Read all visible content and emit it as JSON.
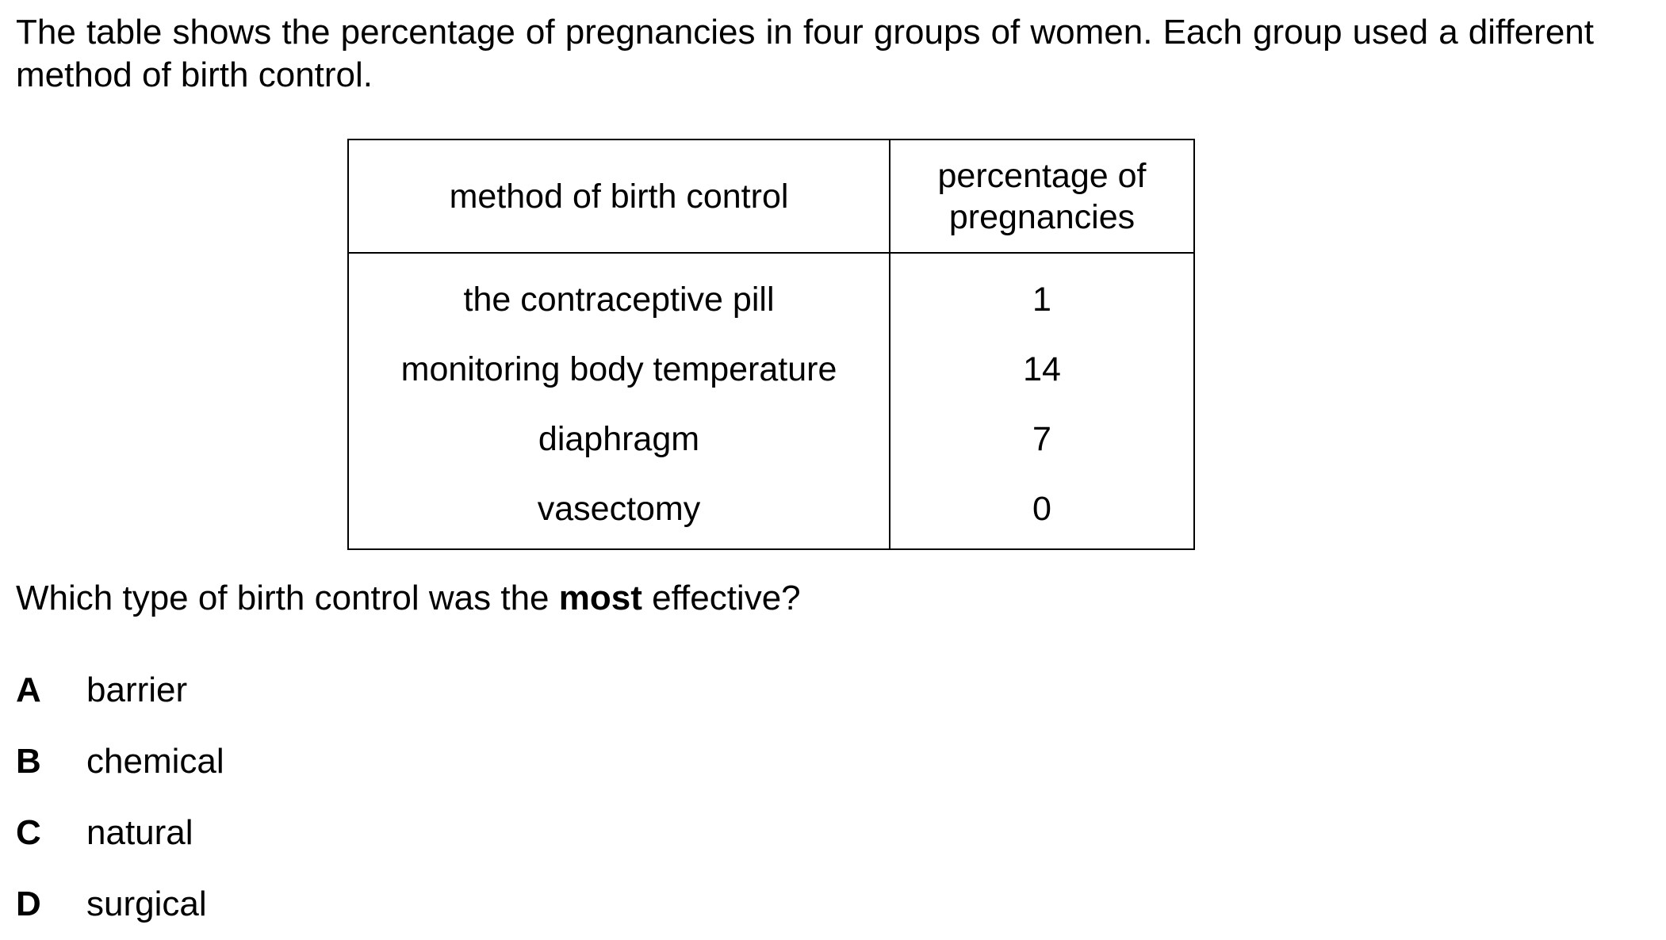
{
  "intro": "The table shows the percentage of pregnancies in four groups of women. Each group used a different method of birth control.",
  "table": {
    "headers": [
      "method of birth control",
      "percentage of pregnancies"
    ],
    "rows": [
      {
        "method": "the contraceptive pill",
        "percentage": "1"
      },
      {
        "method": "monitoring body temperature",
        "percentage": "14"
      },
      {
        "method": "diaphragm",
        "percentage": "7"
      },
      {
        "method": "vasectomy",
        "percentage": "0"
      }
    ]
  },
  "question": {
    "before": "Which type of birth control was the ",
    "emphasis": "most",
    "after": " effective?"
  },
  "options": [
    {
      "letter": "A",
      "text": "barrier"
    },
    {
      "letter": "B",
      "text": "chemical"
    },
    {
      "letter": "C",
      "text": "natural"
    },
    {
      "letter": "D",
      "text": "surgical"
    }
  ]
}
